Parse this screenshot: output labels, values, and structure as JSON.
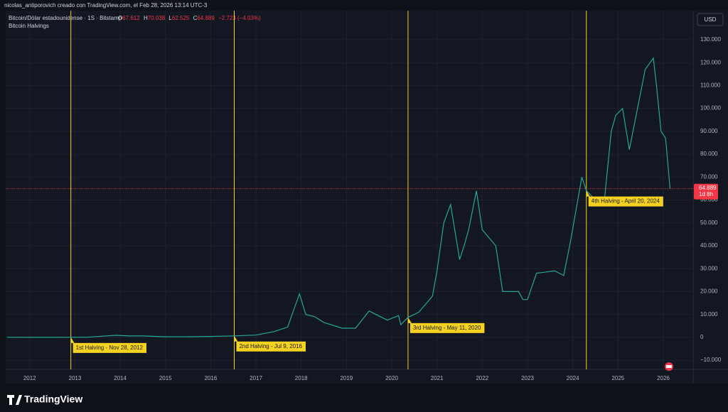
{
  "header": "nicolas_antiporovich creado con TradingView.com, el Feb 28, 2026 13:14 UTC-3",
  "brand": "TradingView",
  "chart_data": {
    "type": "line",
    "indicator": "Bitcoin Halvings",
    "currency": "USD",
    "ohlc": {
      "open_label": "O",
      "open": "67.612",
      "high_label": "H",
      "high": "70.038",
      "low_label": "L",
      "low": "62.525",
      "close_label": "C",
      "close": "64.889",
      "change": "−2.723 (−4.03%)"
    },
    "x": [
      2011.5,
      2012.0,
      2012.5,
      2012.93,
      2013.3,
      2013.9,
      2014.2,
      2014.5,
      2015.0,
      2015.5,
      2016.0,
      2016.52,
      2017.0,
      2017.4,
      2017.7,
      2017.96,
      2018.1,
      2018.3,
      2018.5,
      2018.9,
      2019.2,
      2019.5,
      2019.9,
      2020.15,
      2020.2,
      2020.36,
      2020.6,
      2020.9,
      2021.0,
      2021.15,
      2021.3,
      2021.5,
      2021.6,
      2021.7,
      2021.87,
      2022.0,
      2022.3,
      2022.45,
      2022.8,
      2022.9,
      2023.0,
      2023.2,
      2023.6,
      2023.8,
      2023.95,
      2024.2,
      2024.3,
      2024.6,
      2024.7,
      2024.85,
      2024.95,
      2025.1,
      2025.25,
      2025.5,
      2025.6,
      2025.78,
      2025.85,
      2025.95,
      2026.05,
      2026.15
    ],
    "series": [
      {
        "name": "Bitcoin/Dólar estadounidense · 1S · Bitstamp",
        "color": "#26a69a",
        "values": [
          15,
          5,
          7,
          12,
          100,
          900,
          600,
          600,
          250,
          250,
          400,
          650,
          1000,
          2500,
          4500,
          19000,
          10000,
          9000,
          6500,
          4000,
          4000,
          11500,
          7500,
          9500,
          5500,
          8700,
          11000,
          18000,
          29000,
          50000,
          58000,
          34000,
          40000,
          47000,
          64000,
          47000,
          40000,
          20000,
          20000,
          16500,
          16500,
          28000,
          29000,
          27000,
          42000,
          70000,
          64000,
          58000,
          60000,
          90000,
          97000,
          100000,
          82000,
          107000,
          117000,
          122000,
          110000,
          90000,
          87000,
          64889
        ]
      }
    ],
    "current": {
      "value": 64889,
      "label": "64.889",
      "countdown": "1d 8h",
      "color": "#f23645"
    },
    "annotation_color": "#f5d21f",
    "annotations": [
      {
        "x": 2012.91,
        "label": "1st Halving - Nov 28, 2012"
      },
      {
        "x": 2016.52,
        "label": "2nd Halving - Jul 9, 2016"
      },
      {
        "x": 2020.36,
        "label": "3rd Halving - May 11, 2020"
      },
      {
        "x": 2024.3,
        "label": "4th Halving - April 20, 2024"
      }
    ],
    "xlim": [
      2011.47,
      2026.66
    ],
    "xticks": [
      2012,
      2013,
      2014,
      2015,
      2016,
      2017,
      2018,
      2019,
      2020,
      2021,
      2022,
      2023,
      2024,
      2025,
      2026
    ],
    "ylim": [
      -14000,
      142700
    ],
    "yticks": [
      {
        "value": 130000,
        "label": "130.000"
      },
      {
        "value": 120000,
        "label": "120.000"
      },
      {
        "value": 110000,
        "label": "110.000"
      },
      {
        "value": 100000,
        "label": "100.000"
      },
      {
        "value": 90000,
        "label": "90.000"
      },
      {
        "value": 80000,
        "label": "80.000"
      },
      {
        "value": 70000,
        "label": "70.000"
      },
      {
        "value": 60000,
        "label": "60.000"
      },
      {
        "value": 50000,
        "label": "50.000"
      },
      {
        "value": 40000,
        "label": "40.000"
      },
      {
        "value": 30000,
        "label": "30.000"
      },
      {
        "value": 20000,
        "label": "20.000"
      },
      {
        "value": 10000,
        "label": "10.000"
      },
      0,
      {
        "value": -10000,
        "label": "−10.000"
      }
    ],
    "grid": true
  }
}
